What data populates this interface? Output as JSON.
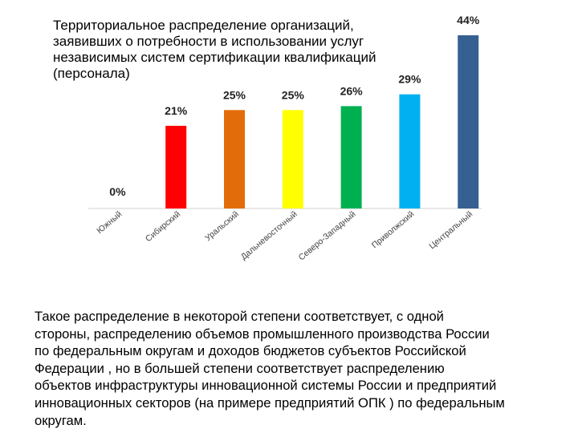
{
  "chart_data": {
    "type": "bar",
    "title": "Территориальное распределение организаций,\nзаявивших о потребности в использовании услуг\nнезависимых систем сертификации квалификаций\n(персонала)",
    "categories": [
      "Южный",
      "Сибирский",
      "Уральский",
      "Дальневосточный",
      "Северо-Западный",
      "Приволжский",
      "Центральный"
    ],
    "values": [
      0,
      21,
      25,
      25,
      26,
      29,
      44
    ],
    "value_labels": [
      "0%",
      "21%",
      "25%",
      "25%",
      "26%",
      "29%",
      "44%"
    ],
    "colors": [
      "#ff0000",
      "#ff0000",
      "#e36c0a",
      "#ffff00",
      "#00b050",
      "#00b0f0",
      "#376092"
    ],
    "ylim": [
      0,
      44
    ],
    "grid": false,
    "legend": "none",
    "xlabel": "",
    "ylabel": ""
  },
  "caption": "Такое распределение в некоторой степени соответствует, с одной\nстороны, распределению объемов промышленного производства России\nпо федеральным округам  и доходов бюджетов субъектов Российской\nФедерации , но в большей степени соответствует распределению\nобъектов инфраструктуры инновационной системы России  и предприятий\nинновационных секторов (на примере предприятий ОПК ) по федеральным\nокругам."
}
